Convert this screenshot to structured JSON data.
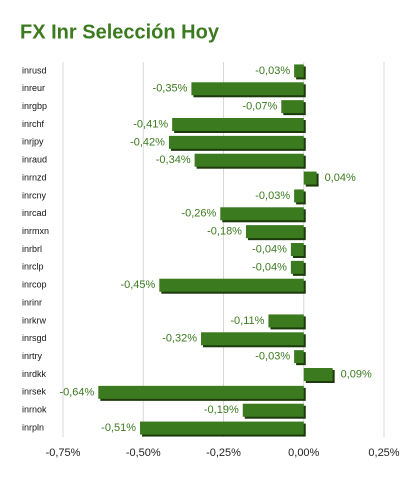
{
  "chart_data": {
    "type": "bar",
    "orientation": "horizontal",
    "title": "FX Inr Selección Hoy",
    "categories": [
      "inrusd",
      "inreur",
      "inrgbp",
      "inrchf",
      "inrjpy",
      "inraud",
      "inrnzd",
      "inrcny",
      "inrcad",
      "inrmxn",
      "inrbrl",
      "inrclp",
      "inrcop",
      "inrinr",
      "inrkrw",
      "inrsgd",
      "inrtry",
      "inrdkk",
      "inrsek",
      "inrnok",
      "inrpln"
    ],
    "values": [
      -0.03,
      -0.35,
      -0.07,
      -0.41,
      -0.42,
      -0.34,
      0.04,
      -0.03,
      -0.26,
      -0.18,
      -0.04,
      -0.04,
      -0.45,
      null,
      -0.11,
      -0.32,
      -0.03,
      0.09,
      -0.64,
      -0.19,
      -0.51
    ],
    "value_labels": [
      "-0,03%",
      "-0,35%",
      "-0,07%",
      "-0,41%",
      "-0,42%",
      "-0,34%",
      "0,04%",
      "-0,03%",
      "-0,26%",
      "-0,18%",
      "-0,04%",
      "-0,04%",
      "-0,45%",
      null,
      "-0,11%",
      "-0,32%",
      "-0,03%",
      "0,09%",
      "-0,64%",
      "-0,19%",
      "-0,51%"
    ],
    "color": "#3b7a1f",
    "xlim": [
      -0.75,
      0.25
    ],
    "xticks": [
      {
        "value": -0.75,
        "label": "-0,75%"
      },
      {
        "value": -0.5,
        "label": "-0,50%"
      },
      {
        "value": -0.25,
        "label": "-0,25%"
      },
      {
        "value": 0,
        "label": "0,00%"
      },
      {
        "value": 0.25,
        "label": "0,25%"
      }
    ],
    "grid": true
  }
}
